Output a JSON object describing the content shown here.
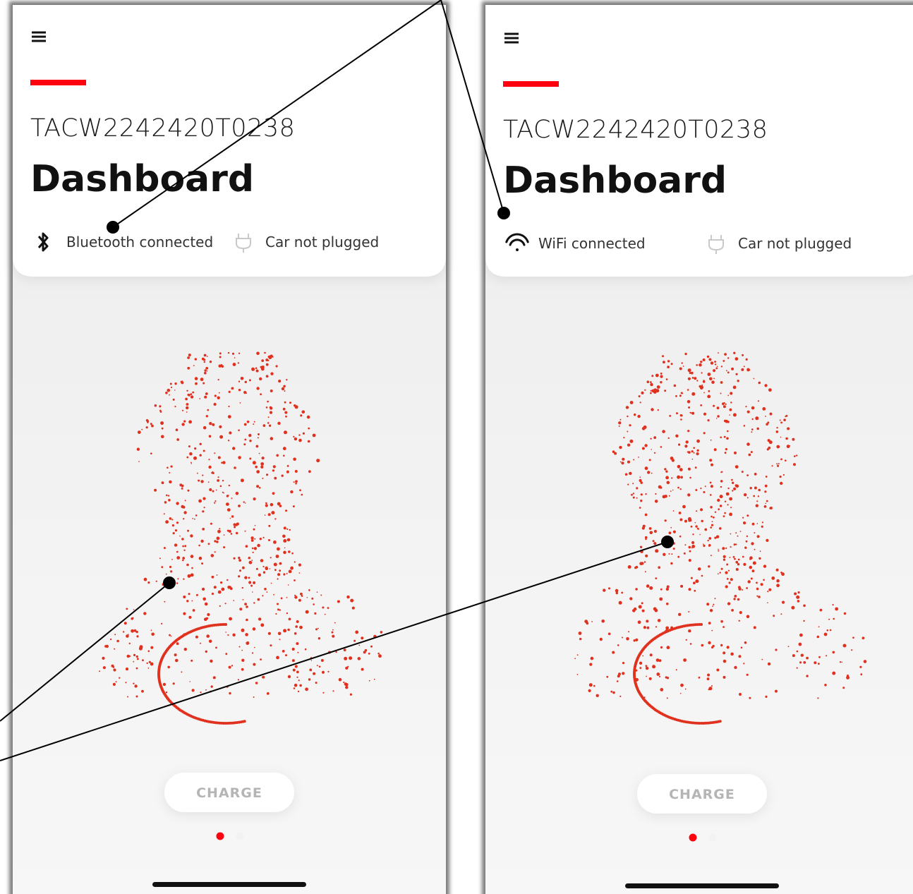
{
  "screens": [
    {
      "device_id": "TACW2242420T0238",
      "title": "Dashboard",
      "connection_status": "Bluetooth connected",
      "plug_status": "Car not plugged",
      "button": "CHARGE"
    },
    {
      "device_id": "TACW2242420T0238",
      "title": "Dashboard",
      "connection_status": "WiFi connected",
      "plug_status": "Car not plugged",
      "button": "CHARGE"
    }
  ]
}
